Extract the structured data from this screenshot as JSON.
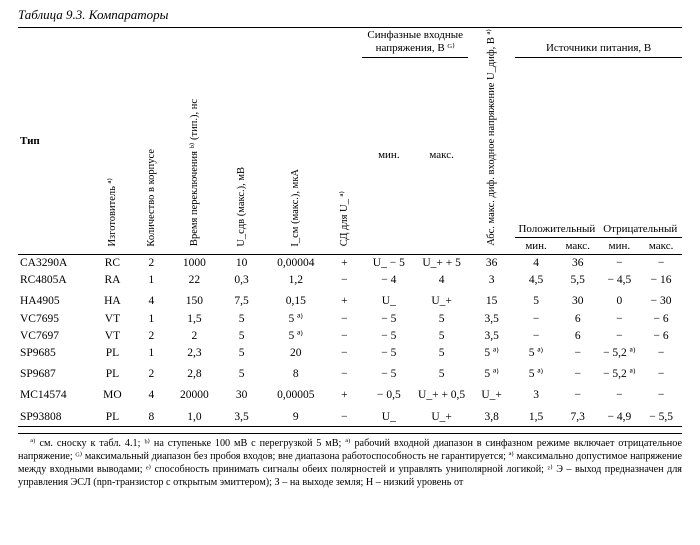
{
  "title": "Таблица 9.3. Компараторы",
  "headers": {
    "type": "Тип",
    "mfr": "Изготовитель ª⁾",
    "qty": "Количество в корпусе",
    "t_switch": "Время переключения ᵇ⁾ (тип.), нс",
    "u_offset": "U_сдв (макс.), мВ",
    "i_offset": "I_см (макс.), мкА",
    "sd": "СД для U_ ª⁾",
    "cm_group": "Синфазные входные напряжения, В ᴳ⁾",
    "cm_min": "мин.",
    "cm_max": "макс.",
    "diff": "Абс. макс. диф. входное напряжение U_диф, В ª⁾",
    "supply_group": "Источники питания, В",
    "supply_pos": "Положительный",
    "supply_neg": "Отрицательный",
    "sup_min": "мин.",
    "sup_max": "макс."
  },
  "rows": [
    {
      "sep": false,
      "type": "CA3290A",
      "mfr": "RC",
      "qty": "2",
      "tsw": "1000",
      "uoff": "10",
      "ioff": "0,00004",
      "sd": "+",
      "cm_min": "U_ − 5",
      "cm_max": "U_+ + 5",
      "diff": "36",
      "pmin": "4",
      "pmax": "36",
      "nmin": "−",
      "nmax": "−"
    },
    {
      "sep": false,
      "type": "RC4805A",
      "mfr": "RA",
      "qty": "1",
      "tsw": "22",
      "uoff": "0,3",
      "ioff": "1,2",
      "sd": "−",
      "cm_min": "− 4",
      "cm_max": "4",
      "diff": "3",
      "pmin": "4,5",
      "pmax": "5,5",
      "nmin": "− 4,5",
      "nmax": "− 16"
    },
    {
      "sep": true,
      "type": "HA4905",
      "mfr": "HA",
      "qty": "4",
      "tsw": "150",
      "uoff": "7,5",
      "ioff": "0,15",
      "sd": "+",
      "cm_min": "U_",
      "cm_max": "U_+",
      "diff": "15",
      "pmin": "5",
      "pmax": "30",
      "nmin": "0",
      "nmax": "− 30"
    },
    {
      "sep": false,
      "type": "VC7695",
      "mfr": "VT",
      "qty": "1",
      "tsw": "1,5",
      "uoff": "5",
      "ioff": "5 ª⁾",
      "sd": "−",
      "cm_min": "− 5",
      "cm_max": "5",
      "diff": "3,5",
      "pmin": "−",
      "pmax": "6",
      "nmin": "−",
      "nmax": "− 6"
    },
    {
      "sep": false,
      "type": "VC7697",
      "mfr": "VT",
      "qty": "2",
      "tsw": "2",
      "uoff": "5",
      "ioff": "5 ª⁾",
      "sd": "−",
      "cm_min": "− 5",
      "cm_max": "5",
      "diff": "3,5",
      "pmin": "−",
      "pmax": "6",
      "nmin": "−",
      "nmax": "− 6"
    },
    {
      "sep": false,
      "type": "SP9685",
      "mfr": "PL",
      "qty": "1",
      "tsw": "2,3",
      "uoff": "5",
      "ioff": "20",
      "sd": "−",
      "cm_min": "− 5",
      "cm_max": "5",
      "diff": "5 ª⁾",
      "pmin": "5 ª⁾",
      "pmax": "−",
      "nmin": "− 5,2 ª⁾",
      "nmax": "−"
    },
    {
      "sep": true,
      "type": "SP9687",
      "mfr": "PL",
      "qty": "2",
      "tsw": "2,8",
      "uoff": "5",
      "ioff": "8",
      "sd": "−",
      "cm_min": "− 5",
      "cm_max": "5",
      "diff": "5 ª⁾",
      "pmin": "5 ª⁾",
      "pmax": "−",
      "nmin": "− 5,2 ª⁾",
      "nmax": "−"
    },
    {
      "sep": true,
      "type": "MC14574",
      "mfr": "MO",
      "qty": "4",
      "tsw": "20000",
      "uoff": "30",
      "ioff": "0,00005",
      "sd": "+",
      "cm_min": "− 0,5",
      "cm_max": "U_+ + 0,5",
      "diff": "U_+",
      "pmin": "3",
      "pmax": "−",
      "nmin": "−",
      "nmax": "−"
    },
    {
      "sep": true,
      "type": "SP93808",
      "mfr": "PL",
      "qty": "8",
      "tsw": "1,0",
      "uoff": "3,5",
      "ioff": "9",
      "sd": "−",
      "cm_min": "U_",
      "cm_max": "U_+",
      "diff": "3,8",
      "pmin": "1,5",
      "pmax": "7,3",
      "nmin": "− 4,9",
      "nmax": "− 5,5"
    }
  ],
  "footnote": "ª⁾ см. сноску к табл. 4.1;  ᵇ⁾ на ступеньке 100 мВ с перегрузкой 5 мВ;  ª⁾ рабочий входной диапазон в синфазном режиме включает отрицательное напряжение;  ᴳ⁾ максимальный диапазон без пробоя входов; вне диапазона работоспособность не гарантируется;  ª⁾ максимально допустимое напряжение между входными выводами;  ᵉ⁾ способность принимать сигналы обеих полярностей и управлять униполярной логикой;  ᶻ⁾ Э – выход предназначен для управления ЭСЛ (npn-транзистор с открытым эмиттером); З – на выходе земля; Н – низкий уровень от"
}
